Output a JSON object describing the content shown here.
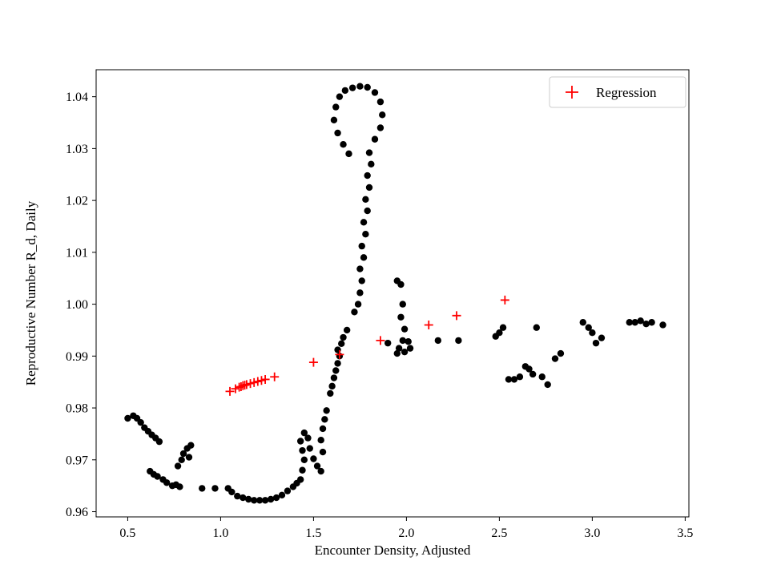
{
  "figure": {
    "background": "#ffffff"
  },
  "chart_data": {
    "type": "scatter",
    "title": "",
    "xlabel": "Encounter Density, Adjusted",
    "ylabel": "Reproductive Number R_d, Daily",
    "xlim": [
      0.33,
      3.52
    ],
    "ylim": [
      0.959,
      1.0452
    ],
    "grid": false,
    "xticks": [
      0.5,
      1.0,
      1.5,
      2.0,
      2.5,
      3.0,
      3.5
    ],
    "xtick_labels": [
      "0.5",
      "1.0",
      "1.5",
      "2.0",
      "2.5",
      "3.0",
      "3.5"
    ],
    "yticks": [
      0.96,
      0.97,
      0.98,
      0.99,
      1.0,
      1.01,
      1.02,
      1.03,
      1.04
    ],
    "ytick_labels": [
      "0.96",
      "0.97",
      "0.98",
      "0.99",
      "1.00",
      "1.01",
      "1.02",
      "1.03",
      "1.04"
    ],
    "legend": {
      "position": "upper right",
      "entries": [
        {
          "label": "Regression",
          "marker": "plus",
          "color": "#ff0000"
        }
      ]
    },
    "series": [
      {
        "name": "data",
        "marker": "circle",
        "color": "#000000",
        "points": [
          [
            0.5,
            0.978
          ],
          [
            0.53,
            0.9785
          ],
          [
            0.55,
            0.978
          ],
          [
            0.57,
            0.9772
          ],
          [
            0.59,
            0.9762
          ],
          [
            0.61,
            0.9755
          ],
          [
            0.63,
            0.9748
          ],
          [
            0.65,
            0.9742
          ],
          [
            0.67,
            0.9735
          ],
          [
            0.62,
            0.9678
          ],
          [
            0.64,
            0.9672
          ],
          [
            0.66,
            0.9668
          ],
          [
            0.69,
            0.9662
          ],
          [
            0.71,
            0.9656
          ],
          [
            0.74,
            0.965
          ],
          [
            0.76,
            0.9652
          ],
          [
            0.78,
            0.9648
          ],
          [
            0.77,
            0.9688
          ],
          [
            0.79,
            0.97
          ],
          [
            0.8,
            0.9712
          ],
          [
            0.82,
            0.9722
          ],
          [
            0.84,
            0.9728
          ],
          [
            0.83,
            0.9705
          ],
          [
            0.9,
            0.9645
          ],
          [
            0.97,
            0.9645
          ],
          [
            1.04,
            0.9645
          ],
          [
            1.06,
            0.9638
          ],
          [
            1.09,
            0.963
          ],
          [
            1.12,
            0.9627
          ],
          [
            1.15,
            0.9624
          ],
          [
            1.18,
            0.9622
          ],
          [
            1.21,
            0.9622
          ],
          [
            1.24,
            0.9622
          ],
          [
            1.27,
            0.9624
          ],
          [
            1.3,
            0.9627
          ],
          [
            1.33,
            0.9632
          ],
          [
            1.36,
            0.964
          ],
          [
            1.39,
            0.9648
          ],
          [
            1.41,
            0.9655
          ],
          [
            1.43,
            0.9662
          ],
          [
            1.44,
            0.968
          ],
          [
            1.45,
            0.97
          ],
          [
            1.44,
            0.9718
          ],
          [
            1.43,
            0.9736
          ],
          [
            1.45,
            0.9752
          ],
          [
            1.47,
            0.9742
          ],
          [
            1.48,
            0.9722
          ],
          [
            1.5,
            0.9702
          ],
          [
            1.52,
            0.9688
          ],
          [
            1.54,
            0.9678
          ],
          [
            1.55,
            0.9715
          ],
          [
            1.54,
            0.9738
          ],
          [
            1.55,
            0.976
          ],
          [
            1.56,
            0.9778
          ],
          [
            1.57,
            0.9795
          ],
          [
            1.59,
            0.9828
          ],
          [
            1.6,
            0.9842
          ],
          [
            1.61,
            0.9858
          ],
          [
            1.62,
            0.9872
          ],
          [
            1.63,
            0.9886
          ],
          [
            1.64,
            0.99
          ],
          [
            1.63,
            0.9912
          ],
          [
            1.65,
            0.9924
          ],
          [
            1.66,
            0.9936
          ],
          [
            1.68,
            0.995
          ],
          [
            1.72,
            0.9985
          ],
          [
            1.74,
            1.0
          ],
          [
            1.75,
            1.0022
          ],
          [
            1.76,
            1.0045
          ],
          [
            1.75,
            1.0068
          ],
          [
            1.77,
            1.009
          ],
          [
            1.76,
            1.0112
          ],
          [
            1.78,
            1.0135
          ],
          [
            1.77,
            1.0158
          ],
          [
            1.79,
            1.018
          ],
          [
            1.78,
            1.0202
          ],
          [
            1.8,
            1.0225
          ],
          [
            1.79,
            1.0248
          ],
          [
            1.81,
            1.027
          ],
          [
            1.8,
            1.0292
          ],
          [
            1.83,
            1.0318
          ],
          [
            1.86,
            1.034
          ],
          [
            1.87,
            1.0365
          ],
          [
            1.86,
            1.039
          ],
          [
            1.83,
            1.0408
          ],
          [
            1.79,
            1.0418
          ],
          [
            1.75,
            1.042
          ],
          [
            1.71,
            1.0417
          ],
          [
            1.67,
            1.0412
          ],
          [
            1.64,
            1.04
          ],
          [
            1.62,
            1.038
          ],
          [
            1.61,
            1.0355
          ],
          [
            1.63,
            1.033
          ],
          [
            1.66,
            1.0308
          ],
          [
            1.69,
            1.029
          ],
          [
            1.95,
            1.0045
          ],
          [
            1.97,
            1.0038
          ],
          [
            1.98,
            1.0
          ],
          [
            1.97,
            0.9975
          ],
          [
            1.99,
            0.9952
          ],
          [
            1.98,
            0.993
          ],
          [
            1.96,
            0.9915
          ],
          [
            1.99,
            0.9908
          ],
          [
            2.02,
            0.9915
          ],
          [
            1.95,
            0.9905
          ],
          [
            2.01,
            0.9928
          ],
          [
            1.9,
            0.9925
          ],
          [
            2.17,
            0.993
          ],
          [
            2.28,
            0.993
          ],
          [
            2.48,
            0.9938
          ],
          [
            2.5,
            0.9945
          ],
          [
            2.52,
            0.9955
          ],
          [
            2.55,
            0.9855
          ],
          [
            2.58,
            0.9855
          ],
          [
            2.61,
            0.986
          ],
          [
            2.64,
            0.988
          ],
          [
            2.66,
            0.9875
          ],
          [
            2.68,
            0.9865
          ],
          [
            2.7,
            0.9955
          ],
          [
            2.73,
            0.986
          ],
          [
            2.76,
            0.9845
          ],
          [
            2.8,
            0.9895
          ],
          [
            2.83,
            0.9905
          ],
          [
            2.95,
            0.9965
          ],
          [
            2.98,
            0.9955
          ],
          [
            3.0,
            0.9945
          ],
          [
            3.02,
            0.9925
          ],
          [
            3.05,
            0.9935
          ],
          [
            3.2,
            0.9965
          ],
          [
            3.23,
            0.9965
          ],
          [
            3.26,
            0.9968
          ],
          [
            3.29,
            0.9962
          ],
          [
            3.32,
            0.9965
          ],
          [
            3.38,
            0.996
          ]
        ]
      },
      {
        "name": "Regression",
        "marker": "plus",
        "color": "#ff0000",
        "points": [
          [
            1.05,
            0.9832
          ],
          [
            1.08,
            0.9837
          ],
          [
            1.1,
            0.984
          ],
          [
            1.11,
            0.9841
          ],
          [
            1.12,
            0.9843
          ],
          [
            1.13,
            0.9844
          ],
          [
            1.14,
            0.9845
          ],
          [
            1.16,
            0.9847
          ],
          [
            1.18,
            0.9849
          ],
          [
            1.2,
            0.9851
          ],
          [
            1.22,
            0.9853
          ],
          [
            1.24,
            0.9855
          ],
          [
            1.29,
            0.986
          ],
          [
            1.5,
            0.9888
          ],
          [
            1.64,
            0.9903
          ],
          [
            1.86,
            0.993
          ],
          [
            2.12,
            0.996
          ],
          [
            2.27,
            0.9978
          ],
          [
            2.53,
            1.0008
          ]
        ]
      }
    ]
  }
}
